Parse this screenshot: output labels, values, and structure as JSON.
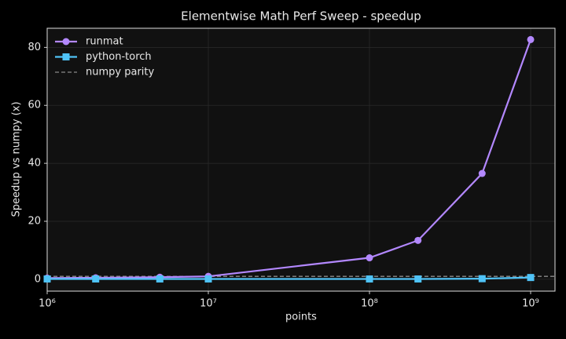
{
  "chart_data": {
    "type": "line",
    "title": "Elementwise Math Perf Sweep - speedup",
    "xlabel": "points",
    "ylabel": "Speedup vs numpy (x)",
    "x": [
      1000000,
      2000000,
      5000000,
      10000000,
      100000000,
      200000000,
      500000000,
      1000000000
    ],
    "series": [
      {
        "name": "runmat",
        "color": "#b388ff",
        "marker": "circle",
        "values": [
          0.4,
          0.5,
          0.7,
          1.0,
          7.4,
          13.4,
          36.5,
          82.7
        ]
      },
      {
        "name": "python-torch",
        "color": "#4fc3f7",
        "marker": "square",
        "values": [
          0.1,
          0.1,
          0.1,
          0.1,
          0.1,
          0.1,
          0.2,
          0.6
        ]
      }
    ],
    "reference_line": {
      "name": "numpy parity",
      "value": 1,
      "color": "#8a8a8a"
    },
    "xscale": "log",
    "xlim": [
      1000000,
      1416000000
    ],
    "xticks": [
      {
        "value": 1000000,
        "label": "10⁶"
      },
      {
        "value": 10000000,
        "label": "10⁷"
      },
      {
        "value": 100000000,
        "label": "10⁸"
      },
      {
        "value": 1000000000,
        "label": "10⁹"
      }
    ],
    "ylim": [
      -4.1,
      86.6
    ],
    "yticks": [
      0,
      20,
      40,
      60,
      80
    ],
    "grid": true,
    "legend": "upper-left"
  }
}
